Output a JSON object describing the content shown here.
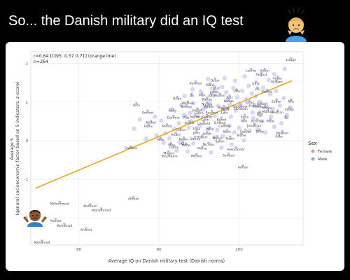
{
  "post": {
    "text": "So... the Danish military did an IQ test"
  },
  "chart_data": {
    "type": "scatter",
    "xlabel": "Average IQ on Danish military test (Danish norms)",
    "ylabel": "Average S\n(general socioeconomic factor based on 5 indicators; z-score)",
    "xlim": [
      74,
      108
    ],
    "ylim": [
      -2.7,
      2.3
    ],
    "xticks": [
      80,
      90,
      100
    ],
    "yticks": [
      -2,
      -1,
      0,
      1,
      2
    ],
    "grid": true,
    "annotation_lines": [
      "r=0.64 [CI95: 0.57 0.71] (orange line)",
      "n=264"
    ],
    "fit_line": {
      "color": "#e6a817",
      "points": [
        [
          74.6,
          -1.23
        ],
        [
          106.6,
          1.55
        ]
      ]
    },
    "legend": {
      "title": "Sex",
      "placement": "right",
      "entries": [
        {
          "label": "Female",
          "color": "#d9a3a3"
        },
        {
          "label": "Male",
          "color": "#a9a8ea"
        }
      ]
    },
    "labeled_points": [
      {
        "name": "Lauge",
        "x": 106.5,
        "y": 2.06,
        "sex": "Male"
      },
      {
        "name": "Laurits",
        "x": 101.5,
        "y": 1.78,
        "sex": "Male"
      },
      {
        "name": "Anton",
        "x": 103.2,
        "y": 1.78,
        "sex": "Male"
      },
      {
        "name": "August",
        "x": 102.8,
        "y": 1.68,
        "sex": "Male"
      },
      {
        "name": "Ander",
        "x": 104.8,
        "y": 1.58,
        "sex": "Male"
      },
      {
        "name": "William",
        "x": 104.7,
        "y": 1.49,
        "sex": "Male"
      },
      {
        "name": "Ulrik",
        "x": 102.1,
        "y": 1.45,
        "sex": "Male"
      },
      {
        "name": "Oscar",
        "x": 97.0,
        "y": 1.53,
        "sex": "Male"
      },
      {
        "name": "Karsten",
        "x": 94.6,
        "y": 1.46,
        "sex": "Male"
      },
      {
        "name": "Klaus",
        "x": 96.4,
        "y": 1.41,
        "sex": "Male"
      },
      {
        "name": "Lau",
        "x": 102.3,
        "y": 1.3,
        "sex": "Male"
      },
      {
        "name": "Mallhe",
        "x": 103.5,
        "y": 1.24,
        "sex": "Male"
      },
      {
        "name": "Claud",
        "x": 97.0,
        "y": 1.33,
        "sex": "Male"
      },
      {
        "name": "Jakob",
        "x": 96.9,
        "y": 1.23,
        "sex": "Male"
      },
      {
        "name": "Uffe",
        "x": 99.7,
        "y": 1.25,
        "sex": "Male"
      },
      {
        "name": "Bo",
        "x": 94.1,
        "y": 1.14,
        "sex": "Male"
      },
      {
        "name": "Max",
        "x": 95.4,
        "y": 1.15,
        "sex": "Male"
      },
      {
        "name": "Jon",
        "x": 96.5,
        "y": 1.14,
        "sex": "Male"
      },
      {
        "name": "Morten",
        "x": 97.6,
        "y": 1.14,
        "sex": "Male"
      },
      {
        "name": "Rolf",
        "x": 98.8,
        "y": 1.09,
        "sex": "Male"
      },
      {
        "name": "Brian",
        "x": 92.3,
        "y": 1.06,
        "sex": "Male"
      },
      {
        "name": "Bjørne",
        "x": 96.0,
        "y": 1.04,
        "sex": "Male"
      },
      {
        "name": "Kongo",
        "x": 98.7,
        "y": 1.0,
        "sex": "Male"
      },
      {
        "name": "Esben",
        "x": 104.7,
        "y": 0.99,
        "sex": "Male"
      },
      {
        "name": "Nils",
        "x": 106.5,
        "y": 0.99,
        "sex": "Male"
      },
      {
        "name": "Ejnar",
        "x": 101.3,
        "y": 0.96,
        "sex": "Male"
      },
      {
        "name": "Lukas",
        "x": 102.8,
        "y": 0.92,
        "sex": "Male"
      },
      {
        "name": "Malene",
        "x": 93.6,
        "y": 0.94,
        "sex": "Female"
      },
      {
        "name": "Nicolaj",
        "x": 96.0,
        "y": 0.91,
        "sex": "Male"
      },
      {
        "name": "Tommy",
        "x": 93.4,
        "y": 0.85,
        "sex": "Male"
      },
      {
        "name": "Rico",
        "x": 87.2,
        "y": 0.89,
        "sex": "Male"
      },
      {
        "name": "Sebastian",
        "x": 100.2,
        "y": 0.86,
        "sex": "Male"
      },
      {
        "name": "Holger",
        "x": 101.9,
        "y": 0.88,
        "sex": "Male"
      },
      {
        "name": "Frederik",
        "x": 102.6,
        "y": 0.85,
        "sex": "Male"
      },
      {
        "name": "Mikkel",
        "x": 96.2,
        "y": 0.85,
        "sex": "Male"
      },
      {
        "name": "Nicolaj",
        "x": 98.1,
        "y": 0.82,
        "sex": "Male"
      },
      {
        "name": "Christian",
        "x": 100.2,
        "y": 0.8,
        "sex": "Male"
      },
      {
        "name": "Karke",
        "x": 103.5,
        "y": 0.81,
        "sex": "Male"
      },
      {
        "name": "Viktor",
        "x": 106.3,
        "y": 0.78,
        "sex": "Male"
      },
      {
        "name": "Markus",
        "x": 103.6,
        "y": 0.72,
        "sex": "Male"
      },
      {
        "name": "Andy",
        "x": 91.7,
        "y": 0.75,
        "sex": "Male"
      },
      {
        "name": "Jesper",
        "x": 94.8,
        "y": 0.76,
        "sex": "Male"
      },
      {
        "name": "Mads",
        "x": 98.3,
        "y": 0.78,
        "sex": "Male"
      },
      {
        "name": "Kennet",
        "x": 88.6,
        "y": 0.7,
        "sex": "Male"
      },
      {
        "name": "Gorm",
        "x": 95.0,
        "y": 0.69,
        "sex": "Male"
      },
      {
        "name": "Rasmus",
        "x": 96.6,
        "y": 0.7,
        "sex": "Male"
      },
      {
        "name": "Lars",
        "x": 98.2,
        "y": 0.7,
        "sex": "Male"
      },
      {
        "name": "Ulla",
        "x": 102.6,
        "y": 0.68,
        "sex": "Female"
      },
      {
        "name": "Bastian",
        "x": 104.8,
        "y": 0.71,
        "sex": "Male"
      },
      {
        "name": "Danmie",
        "x": 91.8,
        "y": 0.57,
        "sex": "Male"
      },
      {
        "name": "Paw",
        "x": 93.4,
        "y": 0.57,
        "sex": "Male"
      },
      {
        "name": "Martin",
        "x": 94.5,
        "y": 0.59,
        "sex": "Male"
      },
      {
        "name": "Kasper",
        "x": 96.0,
        "y": 0.59,
        "sex": "Male"
      },
      {
        "name": "Sune",
        "x": 100.7,
        "y": 0.59,
        "sex": "Male"
      },
      {
        "name": "Tue",
        "x": 102.6,
        "y": 0.62,
        "sex": "Male"
      },
      {
        "name": "Tor",
        "x": 105.9,
        "y": 0.56,
        "sex": "Male"
      },
      {
        "name": "Mickel",
        "x": 89.0,
        "y": 0.44,
        "sex": "Male"
      },
      {
        "name": "Leon",
        "x": 95.8,
        "y": 0.52,
        "sex": "Male"
      },
      {
        "name": "Bernd",
        "x": 97.8,
        "y": 0.52,
        "sex": "Male"
      },
      {
        "name": "Tore",
        "x": 100.6,
        "y": 0.48,
        "sex": "Male"
      },
      {
        "name": "Kristina",
        "x": 102.3,
        "y": 0.48,
        "sex": "Female"
      },
      {
        "name": "Pelle",
        "x": 103.9,
        "y": 0.48,
        "sex": "Male"
      },
      {
        "name": "Jannik",
        "x": 93.8,
        "y": 0.43,
        "sex": "Male"
      },
      {
        "name": "Leopold",
        "x": 95.6,
        "y": 0.42,
        "sex": "Male"
      },
      {
        "name": "Simone",
        "x": 97.6,
        "y": 0.43,
        "sex": "Female"
      },
      {
        "name": "Ronni",
        "x": 88.7,
        "y": 0.34,
        "sex": "Male"
      },
      {
        "name": "Kenny",
        "x": 91.0,
        "y": 0.35,
        "sex": "Male"
      },
      {
        "name": "Camilla",
        "x": 98.2,
        "y": 0.35,
        "sex": "Female"
      },
      {
        "name": "Jonathan",
        "x": 101.9,
        "y": 0.36,
        "sex": "Male"
      },
      {
        "name": "Coline",
        "x": 92.7,
        "y": 0.25,
        "sex": "Female"
      },
      {
        "name": "Trine",
        "x": 94.7,
        "y": 0.27,
        "sex": "Female"
      },
      {
        "name": "Mick",
        "x": 96.4,
        "y": 0.27,
        "sex": "Male"
      },
      {
        "name": "Sean",
        "x": 98.5,
        "y": 0.21,
        "sex": "Male"
      },
      {
        "name": "Caspar",
        "x": 100.8,
        "y": 0.21,
        "sex": "Male"
      },
      {
        "name": "Ditte",
        "x": 102.6,
        "y": 0.21,
        "sex": "Female"
      },
      {
        "name": "Jonatan",
        "x": 105.4,
        "y": 0.17,
        "sex": "Male"
      },
      {
        "name": "Andre",
        "x": 92.1,
        "y": 0.13,
        "sex": "Male"
      },
      {
        "name": "Jens",
        "x": 94.7,
        "y": 0.17,
        "sex": "Male"
      },
      {
        "name": "Jacob",
        "x": 96.0,
        "y": 0.15,
        "sex": "Male"
      },
      {
        "name": "Marie",
        "x": 100.3,
        "y": 0.11,
        "sex": "Female"
      },
      {
        "name": "Aske",
        "x": 105.0,
        "y": 0.08,
        "sex": "Male"
      },
      {
        "name": "Robert",
        "x": 95.4,
        "y": 0.06,
        "sex": "Male"
      },
      {
        "name": "Marco",
        "x": 97.3,
        "y": 0.04,
        "sex": "Male"
      },
      {
        "name": "Robin",
        "x": 98.9,
        "y": 0.03,
        "sex": "Male"
      },
      {
        "name": "Mike",
        "x": 90.2,
        "y": 0.0,
        "sex": "Male"
      },
      {
        "name": "Kewin",
        "x": 93.1,
        "y": 0.01,
        "sex": "Male"
      },
      {
        "name": "Danny",
        "x": 94.5,
        "y": 0.02,
        "sex": "Male"
      },
      {
        "name": "Sarah",
        "x": 97.6,
        "y": -0.05,
        "sex": "Female"
      },
      {
        "name": "Kaj",
        "x": 93.0,
        "y": -0.11,
        "sex": "Male"
      },
      {
        "name": "Nicolas",
        "x": 96.2,
        "y": -0.13,
        "sex": "Male"
      },
      {
        "name": "Mia",
        "x": 91.5,
        "y": -0.14,
        "sex": "Female"
      },
      {
        "name": "Rode",
        "x": 93.4,
        "y": -0.15,
        "sex": "Male"
      },
      {
        "name": "Danni",
        "x": 91.9,
        "y": -0.2,
        "sex": "Male"
      },
      {
        "name": "Pierre",
        "x": 95.4,
        "y": -0.23,
        "sex": "Male"
      },
      {
        "name": "Sabrina",
        "x": 86.5,
        "y": -0.22,
        "sex": "Female"
      },
      {
        "name": "Aleksander",
        "x": 99.6,
        "y": -0.25,
        "sex": "Male"
      },
      {
        "name": "Michel",
        "x": 91.2,
        "y": -0.35,
        "sex": "Male"
      },
      {
        "name": "Stephanie",
        "x": 91.3,
        "y": -0.43,
        "sex": "Female"
      },
      {
        "name": "Mickey",
        "x": 94.7,
        "y": -0.43,
        "sex": "Male"
      },
      {
        "name": "Samuel",
        "x": 98.7,
        "y": -0.41,
        "sex": "Male"
      },
      {
        "name": "Adrian",
        "x": 100.5,
        "y": -0.72,
        "sex": "Male"
      },
      {
        "name": "Ahmet",
        "x": 86.8,
        "y": -1.53,
        "sex": "Male"
      },
      {
        "name": "Mohammad",
        "x": 77.6,
        "y": -1.66,
        "sex": "Male"
      },
      {
        "name": "Mehmet",
        "x": 81.4,
        "y": -1.72,
        "sex": "Male"
      },
      {
        "name": "Mohammed",
        "x": 82.8,
        "y": -1.83,
        "sex": "Male"
      },
      {
        "name": "Ahmad",
        "x": 77.1,
        "y": -2.1,
        "sex": "Male"
      },
      {
        "name": "Mohamad",
        "x": 78.2,
        "y": -2.23,
        "sex": "Male"
      },
      {
        "name": "Ahmed",
        "x": 80.9,
        "y": -2.34,
        "sex": "Male"
      },
      {
        "name": "Mohamed",
        "x": 75.4,
        "y": -2.66,
        "sex": "Male"
      }
    ],
    "background_points": [
      [
        91.5,
        0.8
      ],
      [
        92.8,
        0.92
      ],
      [
        93.9,
        0.72
      ],
      [
        94.3,
        0.97
      ],
      [
        95.2,
        1.27
      ],
      [
        95.8,
        0.86
      ],
      [
        96.8,
        1.18
      ],
      [
        97.4,
        0.9
      ],
      [
        97.9,
        1.39
      ],
      [
        98.4,
        1.25
      ],
      [
        98.9,
        0.93
      ],
      [
        99.3,
        1.36
      ],
      [
        99.8,
        1.12
      ],
      [
        100.4,
        1.29
      ],
      [
        100.9,
        1.07
      ],
      [
        101.2,
        1.42
      ],
      [
        101.7,
        0.73
      ],
      [
        102.1,
        1.15
      ],
      [
        102.5,
        1.0
      ],
      [
        103.0,
        1.37
      ],
      [
        103.4,
        0.94
      ],
      [
        103.9,
        1.2
      ],
      [
        104.2,
        0.82
      ],
      [
        104.6,
        1.29
      ],
      [
        105.1,
        0.91
      ],
      [
        105.6,
        1.1
      ],
      [
        106.0,
        0.66
      ],
      [
        106.4,
        0.86
      ],
      [
        99.0,
        0.62
      ],
      [
        99.6,
        0.78
      ],
      [
        100.1,
        0.96
      ],
      [
        98.6,
        1.05
      ],
      [
        97.0,
        0.64
      ],
      [
        96.3,
        0.99
      ],
      [
        95.5,
        0.8
      ],
      [
        94.9,
        0.63
      ],
      [
        94.0,
        0.51
      ],
      [
        93.1,
        0.66
      ],
      [
        92.5,
        0.45
      ],
      [
        91.9,
        0.31
      ],
      [
        90.8,
        0.19
      ],
      [
        90.3,
        0.52
      ],
      [
        89.5,
        0.62
      ],
      [
        91.3,
        0.06
      ],
      [
        92.6,
        -0.05
      ],
      [
        93.7,
        0.33
      ],
      [
        94.3,
        -0.07
      ],
      [
        95.1,
        0.38
      ],
      [
        96.1,
        0.3
      ],
      [
        96.9,
        0.09
      ],
      [
        97.3,
        0.28
      ],
      [
        98.0,
        0.12
      ],
      [
        98.8,
        0.38
      ],
      [
        99.4,
        0.21
      ],
      [
        100.0,
        0.33
      ],
      [
        100.6,
        0.01
      ],
      [
        101.3,
        0.26
      ],
      [
        101.8,
        0.58
      ],
      [
        102.3,
        0.29
      ],
      [
        102.9,
        0.5
      ],
      [
        103.3,
        0.21
      ],
      [
        104.0,
        0.62
      ],
      [
        104.4,
        0.36
      ],
      [
        105.3,
        0.45
      ],
      [
        99.1,
        -0.1
      ],
      [
        97.8,
        -0.18
      ],
      [
        96.5,
        -0.3
      ],
      [
        93.6,
        -0.28
      ],
      [
        92.2,
        -0.26
      ],
      [
        90.6,
        -0.05
      ],
      [
        89.7,
        0.14
      ],
      [
        88.4,
        0.05
      ],
      [
        87.6,
        0.55
      ],
      [
        86.9,
        0.31
      ],
      [
        98.2,
        1.62
      ],
      [
        99.5,
        1.55
      ],
      [
        100.7,
        1.66
      ],
      [
        101.6,
        1.22
      ],
      [
        103.7,
        1.57
      ],
      [
        105.7,
        1.86
      ],
      [
        104.4,
        1.72
      ],
      [
        96.1,
        1.6
      ],
      [
        94.2,
        1.33
      ],
      [
        93.2,
        1.16
      ]
    ]
  }
}
